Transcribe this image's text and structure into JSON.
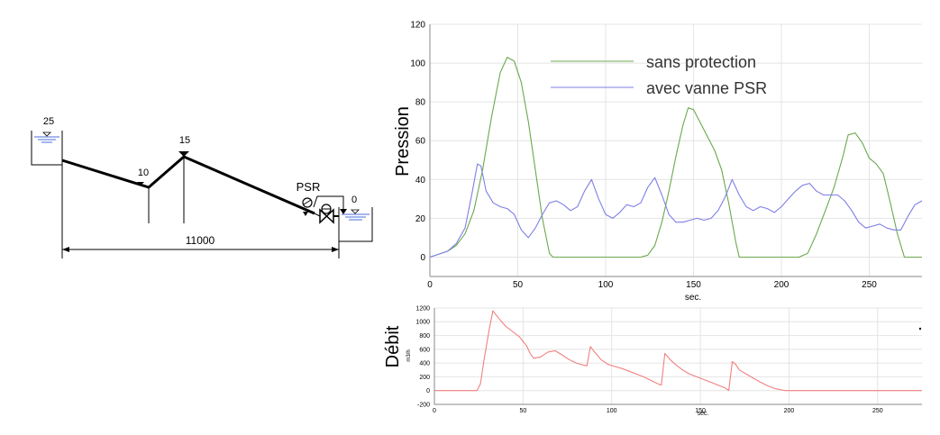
{
  "diagram": {
    "elevations": {
      "reservoir_upstream": "25",
      "low_point": "10",
      "high_point": "15",
      "reservoir_downstream": "0"
    },
    "distance": "11000",
    "device_label": "PSR"
  },
  "chart_data": [
    {
      "type": "line",
      "ylabel": "Pression",
      "xlabel": "sec.",
      "xlim": [
        0,
        280
      ],
      "ylim": [
        -10,
        120
      ],
      "xticks": [
        "0",
        "50",
        "100",
        "150",
        "200",
        "250"
      ],
      "yticks": [
        "0",
        "20",
        "40",
        "60",
        "80",
        "100",
        "120"
      ],
      "legend_position": "top-center",
      "colors": {
        "sans_protection": "#6aa84f",
        "avec_vanne": "#7f7fe6",
        "overlap": "#8a5a3c"
      },
      "series": [
        {
          "name": "sans protection",
          "x": [
            0,
            10,
            15,
            20,
            25,
            30,
            35,
            40,
            44,
            48,
            52,
            56,
            60,
            64,
            68,
            70,
            100,
            110,
            120,
            124,
            128,
            132,
            136,
            140,
            144,
            147,
            150,
            154,
            158,
            162,
            166,
            170,
            174,
            176,
            205,
            210,
            215,
            220,
            225,
            230,
            235,
            238,
            242,
            246,
            250,
            254,
            258,
            262,
            266,
            270,
            274,
            280
          ],
          "y": [
            0,
            3,
            6,
            12,
            24,
            45,
            72,
            95,
            103,
            101,
            90,
            70,
            45,
            20,
            2,
            0,
            0,
            0,
            0,
            1,
            6,
            18,
            34,
            52,
            68,
            77,
            76,
            69,
            62,
            55,
            45,
            28,
            8,
            0,
            0,
            0,
            2,
            12,
            24,
            36,
            52,
            63,
            64,
            59,
            51,
            48,
            43,
            28,
            12,
            0,
            0,
            0
          ]
        },
        {
          "name": "avec vanne PSR",
          "x": [
            0,
            10,
            15,
            20,
            24,
            27,
            29,
            32,
            36,
            40,
            44,
            48,
            52,
            56,
            60,
            64,
            68,
            72,
            76,
            80,
            84,
            88,
            92,
            96,
            100,
            104,
            108,
            112,
            116,
            120,
            124,
            128,
            132,
            136,
            140,
            144,
            148,
            152,
            156,
            160,
            164,
            168,
            172,
            176,
            180,
            184,
            188,
            192,
            196,
            200,
            204,
            208,
            212,
            216,
            220,
            224,
            228,
            232,
            236,
            240,
            244,
            248,
            252,
            256,
            260,
            264,
            268,
            272,
            276,
            280
          ],
          "y": [
            0,
            3,
            7,
            15,
            33,
            48,
            47,
            34,
            28,
            26,
            25,
            22,
            14,
            10,
            15,
            22,
            28,
            29,
            27,
            24,
            26,
            34,
            40,
            30,
            22,
            20,
            23,
            27,
            26,
            28,
            36,
            41,
            32,
            22,
            18,
            18,
            19,
            20,
            19,
            20,
            24,
            31,
            40,
            32,
            26,
            24,
            26,
            25,
            23,
            26,
            30,
            34,
            37,
            38,
            34,
            32,
            32,
            32,
            29,
            24,
            18,
            15,
            16,
            17,
            15,
            14,
            14,
            21,
            27,
            29
          ]
        }
      ]
    },
    {
      "type": "line",
      "ylabel": "Débit",
      "yunit": "m3/h",
      "xlabel": "sec.",
      "xlim": [
        0,
        275
      ],
      "ylim": [
        -200,
        1200
      ],
      "xticks": [
        "0",
        "50",
        "100",
        "150",
        "200",
        "250"
      ],
      "yticks": [
        "-200",
        "0",
        "200",
        "400",
        "600",
        "800",
        "1000",
        "1200"
      ],
      "color": "#f08080",
      "series": [
        {
          "x": [
            0,
            24,
            26,
            28,
            31,
            33,
            36,
            40,
            44,
            48,
            52,
            54,
            56,
            60,
            64,
            68,
            72,
            76,
            80,
            84,
            86,
            88,
            90,
            94,
            98,
            102,
            106,
            110,
            114,
            118,
            122,
            126,
            128,
            130,
            133,
            136,
            140,
            144,
            148,
            152,
            156,
            160,
            164,
            166,
            168,
            170,
            172,
            176,
            180,
            184,
            188,
            192,
            196,
            198,
            200,
            275
          ],
          "y": [
            0,
            0,
            100,
            450,
            900,
            1160,
            1060,
            940,
            860,
            780,
            650,
            540,
            470,
            490,
            560,
            580,
            520,
            450,
            400,
            370,
            360,
            640,
            570,
            450,
            380,
            350,
            320,
            280,
            240,
            200,
            150,
            100,
            80,
            540,
            450,
            380,
            300,
            240,
            200,
            160,
            120,
            80,
            40,
            0,
            420,
            380,
            300,
            240,
            180,
            120,
            70,
            30,
            10,
            0,
            0,
            0
          ]
        }
      ]
    }
  ]
}
